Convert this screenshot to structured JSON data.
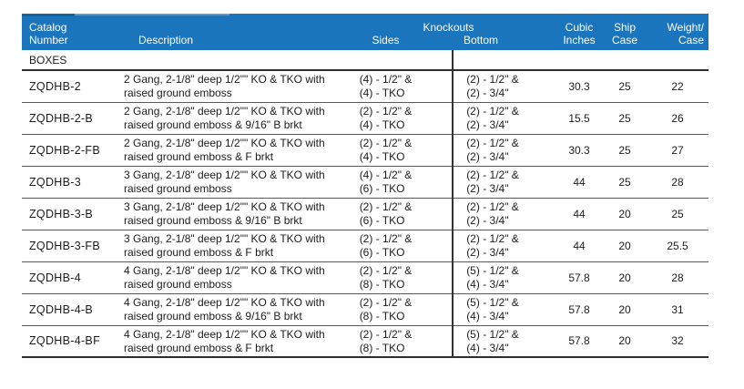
{
  "section_label": "BOXES",
  "header": {
    "catalog": [
      "Catalog",
      "Number"
    ],
    "description": "Description",
    "knockouts": "Knockouts",
    "sides": "Sides",
    "bottom": "Bottom",
    "cubic": [
      "Cubic",
      "Inches"
    ],
    "ship": [
      "Ship",
      "Case"
    ],
    "weight": [
      "Weight/",
      "Case"
    ]
  },
  "colors": {
    "header_bg": "#1B75BC",
    "header_accent_dark": "#14639F",
    "header_accent_light": "#5B9BD0",
    "header_text": "#FFFFFF",
    "body_text": "#1C1C1C",
    "rule": "#5A5A5A",
    "thick_rule": "#2E2E2E"
  },
  "table": {
    "rows": [
      {
        "catalog": "ZQDHB-2",
        "desc1": "2 Gang, 2-1/8\" deep 1/2\"\" KO & TKO with",
        "desc2": "raised ground emboss",
        "sides1": "(4) - 1/2\" &",
        "sides2": "(4) - TKO",
        "bottom1": "(2) - 1/2\" &",
        "bottom2": "(2) - 3/4\"",
        "cubic": "30.3",
        "ship": "25",
        "weight": "22"
      },
      {
        "catalog": "ZQDHB-2-B",
        "desc1": "2 Gang, 2-1/8\" deep 1/2\"\" KO & TKO with",
        "desc2": "raised ground emboss & 9/16\" B brkt",
        "sides1": "(2) - 1/2\" &",
        "sides2": "(4) - TKO",
        "bottom1": "(2) - 1/2\" &",
        "bottom2": "(2) - 3/4\"",
        "cubic": "15.5",
        "ship": "25",
        "weight": "26"
      },
      {
        "catalog": "ZQDHB-2-FB",
        "desc1": "2 Gang, 2-1/8\" deep 1/2\"\" KO & TKO with",
        "desc2": "raised ground emboss & F brkt",
        "sides1": "(2) - 1/2\" &",
        "sides2": "(4) - TKO",
        "bottom1": "(2) - 1/2\" &",
        "bottom2": "(2) - 3/4\"",
        "cubic": "30.3",
        "ship": "25",
        "weight": "27"
      },
      {
        "catalog": "ZQDHB-3",
        "desc1": "3 Gang, 2-1/8\" deep 1/2\"\" KO & TKO with",
        "desc2": "raised ground emboss",
        "sides1": "(4) - 1/2\" &",
        "sides2": "(6) - TKO",
        "bottom1": "(2) - 1/2\" &",
        "bottom2": "(2) - 3/4\"",
        "cubic": "44",
        "ship": "25",
        "weight": "28"
      },
      {
        "catalog": "ZQDHB-3-B",
        "desc1": "3 Gang, 2-1/8\" deep 1/2\"\" KO & TKO with",
        "desc2": "raised ground emboss & 9/16\" B brkt",
        "sides1": "(2) - 1/2\" &",
        "sides2": "(6) - TKO",
        "bottom1": "(2) - 1/2\" &",
        "bottom2": "(2) - 3/4\"",
        "cubic": "44",
        "ship": "20",
        "weight": "25"
      },
      {
        "catalog": "ZQDHB-3-FB",
        "desc1": "3 Gang, 2-1/8\" deep 1/2\"\" KO & TKO with",
        "desc2": "raised ground emboss & F brkt",
        "sides1": "(2) - 1/2\" &",
        "sides2": "(6) - TKO",
        "bottom1": "(2) - 1/2\" &",
        "bottom2": "(2) - 3/4\"",
        "cubic": "44",
        "ship": "20",
        "weight": "25.5"
      },
      {
        "catalog": "ZQDHB-4",
        "desc1": "4 Gang, 2-1/8\" deep 1/2\"\" KO & TKO with",
        "desc2": "raised ground emboss",
        "sides1": "(2) - 1/2\" &",
        "sides2": "(8) - TKO",
        "bottom1": "(5) - 1/2\" &",
        "bottom2": "(4) - 3/4\"",
        "cubic": "57.8",
        "ship": "20",
        "weight": "28"
      },
      {
        "catalog": "ZQDHB-4-B",
        "desc1": "4 Gang, 2-1/8\" deep 1/2\"\" KO & TKO with",
        "desc2": "raised ground emboss & 9/16\" B brkt",
        "sides1": "(2) - 1/2\" &",
        "sides2": "(8) - TKO",
        "bottom1": "(5) - 1/2\" &",
        "bottom2": "(4) - 3/4\"",
        "cubic": "57.8",
        "ship": "20",
        "weight": "31"
      },
      {
        "catalog": "ZQDHB-4-BF",
        "desc1": "4 Gang, 2-1/8\" deep 1/2\"\" KO & TKO with",
        "desc2": "raised ground emboss & F brkt",
        "sides1": "(2) - 1/2\" &",
        "sides2": "(8) - TKO",
        "bottom1": "(5) - 1/2\" &",
        "bottom2": "(4) - 3/4\"",
        "cubic": "57.8",
        "ship": "20",
        "weight": "32"
      }
    ]
  }
}
